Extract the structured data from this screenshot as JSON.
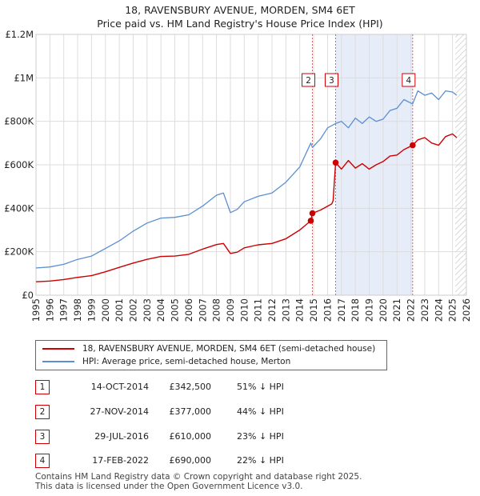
{
  "title": "18, RAVENSBURY AVENUE, MORDEN, SM4 6ET",
  "subtitle": "Price paid vs. HM Land Registry's House Price Index (HPI)",
  "chart_data": {
    "type": "line",
    "xlim": [
      1995,
      2026
    ],
    "ylim": [
      0,
      1200000
    ],
    "x_ticks": [
      "1995",
      "1996",
      "1997",
      "1998",
      "1999",
      "2000",
      "2001",
      "2002",
      "2003",
      "2004",
      "2005",
      "2006",
      "2007",
      "2008",
      "2009",
      "2010",
      "2011",
      "2012",
      "2013",
      "2014",
      "2015",
      "2016",
      "2017",
      "2018",
      "2019",
      "2020",
      "2021",
      "2022",
      "2023",
      "2024",
      "2025",
      "2026"
    ],
    "y_ticks": [
      {
        "value": 0,
        "label": "£0"
      },
      {
        "value": 200000,
        "label": "£200K"
      },
      {
        "value": 400000,
        "label": "£400K"
      },
      {
        "value": 600000,
        "label": "£600K"
      },
      {
        "value": 800000,
        "label": "£800K"
      },
      {
        "value": 1000000,
        "label": "£1M"
      },
      {
        "value": 1200000,
        "label": "£1.2M"
      }
    ],
    "colors": {
      "property": "#cc0000",
      "hpi": "#5b8fd0",
      "shade": "#e6ecf8",
      "grid": "#dddddd",
      "marker_line": "#e06060"
    },
    "shaded_range": [
      2016.58,
      2022.13
    ],
    "hatched_from": 2025.2,
    "series": [
      {
        "name": "18, RAVENSBURY AVENUE, MORDEN, SM4 6ET (semi-detached house)",
        "key": "property",
        "x": [
          1995,
          1996,
          1997,
          1998,
          1999,
          2000,
          2001,
          2002,
          2003,
          2004,
          2005,
          2006,
          2007,
          2008,
          2008.5,
          2009,
          2009.5,
          2010,
          2011,
          2012,
          2013,
          2014,
          2014.79,
          2014.91,
          2015.5,
          2016.3,
          2016.4,
          2016.58,
          2017,
          2017.5,
          2018,
          2018.5,
          2019,
          2019.5,
          2020,
          2020.5,
          2021,
          2021.5,
          2022.13,
          2022.5,
          2023,
          2023.5,
          2024,
          2024.5,
          2025,
          2025.3
        ],
        "y": [
          62000,
          65000,
          72000,
          82000,
          90000,
          108000,
          128000,
          148000,
          165000,
          178000,
          180000,
          188000,
          212000,
          233000,
          238000,
          192000,
          198000,
          218000,
          232000,
          238000,
          260000,
          300000,
          342500,
          377000,
          392000,
          420000,
          435000,
          610000,
          580000,
          620000,
          585000,
          605000,
          580000,
          600000,
          615000,
          640000,
          645000,
          670000,
          690000,
          715000,
          725000,
          700000,
          690000,
          730000,
          742000,
          725000
        ]
      },
      {
        "name": "HPI: Average price, semi-detached house, Merton",
        "key": "hpi",
        "x": [
          1995,
          1996,
          1997,
          1998,
          1999,
          2000,
          2001,
          2002,
          2003,
          2004,
          2005,
          2006,
          2007,
          2008,
          2008.5,
          2009,
          2009.5,
          2010,
          2011,
          2012,
          2013,
          2014,
          2014.79,
          2014.91,
          2015.5,
          2016,
          2016.58,
          2017,
          2017.5,
          2018,
          2018.5,
          2019,
          2019.5,
          2020,
          2020.5,
          2021,
          2021.5,
          2022.13,
          2022.5,
          2023,
          2023.5,
          2024,
          2024.5,
          2025,
          2025.3
        ],
        "y": [
          125000,
          130000,
          142000,
          165000,
          180000,
          215000,
          250000,
          295000,
          332000,
          355000,
          358000,
          370000,
          410000,
          460000,
          470000,
          380000,
          395000,
          430000,
          455000,
          470000,
          520000,
          590000,
          700000,
          680000,
          720000,
          770000,
          790000,
          800000,
          770000,
          815000,
          790000,
          820000,
          800000,
          810000,
          850000,
          860000,
          900000,
          880000,
          940000,
          920000,
          930000,
          900000,
          940000,
          935000,
          920000
        ]
      }
    ],
    "transactions": [
      {
        "id": "1",
        "x": 2014.79,
        "y": 342500
      },
      {
        "id": "2",
        "x": 2014.91,
        "y": 377000
      },
      {
        "id": "3",
        "x": 2016.58,
        "y": 610000
      },
      {
        "id": "4",
        "x": 2022.13,
        "y": 690000
      }
    ],
    "chart_labels": [
      "2",
      "3",
      "4"
    ]
  },
  "legend": [
    {
      "label": "18, RAVENSBURY AVENUE, MORDEN, SM4 6ET (semi-detached house)",
      "color": "#cc0000"
    },
    {
      "label": "HPI: Average price, semi-detached house, Merton",
      "color": "#5b8fd0"
    }
  ],
  "transactions_table": [
    {
      "num": "1",
      "date": "14-OCT-2014",
      "price": "£342,500",
      "hpi": "51% ↓ HPI"
    },
    {
      "num": "2",
      "date": "27-NOV-2014",
      "price": "£377,000",
      "hpi": "44% ↓ HPI"
    },
    {
      "num": "3",
      "date": "29-JUL-2016",
      "price": "£610,000",
      "hpi": "23% ↓ HPI"
    },
    {
      "num": "4",
      "date": "17-FEB-2022",
      "price": "£690,000",
      "hpi": "22% ↓ HPI"
    }
  ],
  "footer": {
    "line1": "Contains HM Land Registry data © Crown copyright and database right 2025.",
    "line2": "This data is licensed under the Open Government Licence v3.0."
  }
}
